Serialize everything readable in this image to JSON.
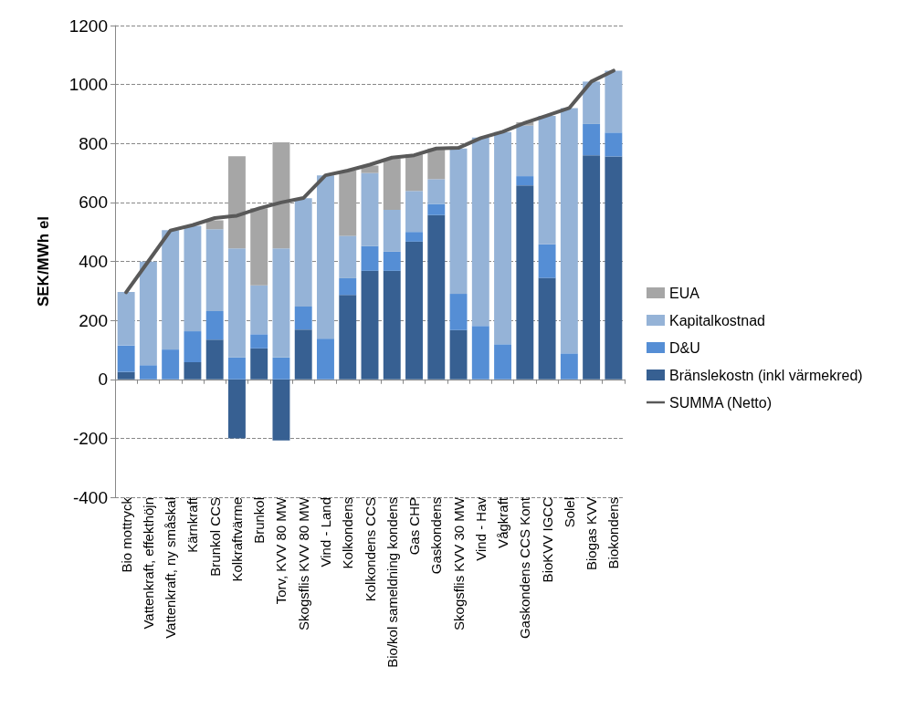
{
  "chart_data": {
    "type": "bar",
    "stacked": true,
    "ylabel": "SEK/MWh el",
    "categories": [
      "Bio mottryck",
      "Vattenkraft, effekthöjn",
      "Vattenkraft, ny småskal",
      "Kärnkraft",
      "Brunkol CCS",
      "Kolkraftvärme",
      "Brunkol",
      "Torv, KVV 80 MW",
      "Skogsflis KVV 80 MW",
      "Vind - Land",
      "Kolkondens",
      "Kolkondens CCS",
      "Bio/kol sameldning kondens",
      "Gas CHP",
      "Gaskondens",
      "Skogsflis KVV 30 MW",
      "Vind - Hav",
      "Vågkraft",
      "Gaskondens CCS Kont",
      "BioKVV IGCC",
      "Solel",
      "Biogas KVV",
      "Biokondens"
    ],
    "series": [
      {
        "name": "Bränslekostn (inkl värmekred)",
        "color": "#376092",
        "values": [
          25,
          0,
          0,
          58,
          135,
          -200,
          105,
          -207,
          169,
          0,
          286,
          368,
          368,
          467,
          557,
          167,
          0,
          0,
          658,
          344,
          0,
          760,
          756
        ]
      },
      {
        "name": "D&U",
        "color": "#558ed5",
        "values": [
          90,
          48,
          101,
          105,
          96,
          74,
          48,
          74,
          78,
          138,
          57,
          84,
          65,
          33,
          38,
          123,
          181,
          119,
          31,
          114,
          88,
          106,
          81
        ]
      },
      {
        "name": "Kapitalkostnad",
        "color": "#95b3d7",
        "values": [
          181,
          351,
          405,
          358,
          278,
          370,
          166,
          370,
          367,
          554,
          144,
          248,
          142,
          139,
          84,
          493,
          639,
          720,
          172,
          436,
          832,
          144,
          210
        ]
      },
      {
        "name": "EUA",
        "color": "#a6a6a6",
        "values": [
          0,
          0,
          0,
          0,
          30,
          313,
          261,
          360,
          0,
          0,
          221,
          25,
          174,
          124,
          104,
          0,
          0,
          0,
          11,
          0,
          0,
          0,
          0
        ]
      },
      {
        "name": "SUMMA (Netto)",
        "type": "line",
        "color": "#595959",
        "values": [
          295,
          400,
          505,
          523,
          547,
          555,
          580,
          600,
          615,
          692,
          708,
          728,
          752,
          760,
          783,
          785,
          818,
          840,
          870,
          895,
          920,
          1010,
          1047
        ]
      }
    ],
    "ylim": [
      -400,
      1200
    ],
    "yticks": [
      -400,
      -200,
      0,
      200,
      400,
      600,
      800,
      1000,
      1200
    ],
    "grid": "y",
    "legend": "right",
    "marker": "none",
    "line_style": "solid"
  }
}
